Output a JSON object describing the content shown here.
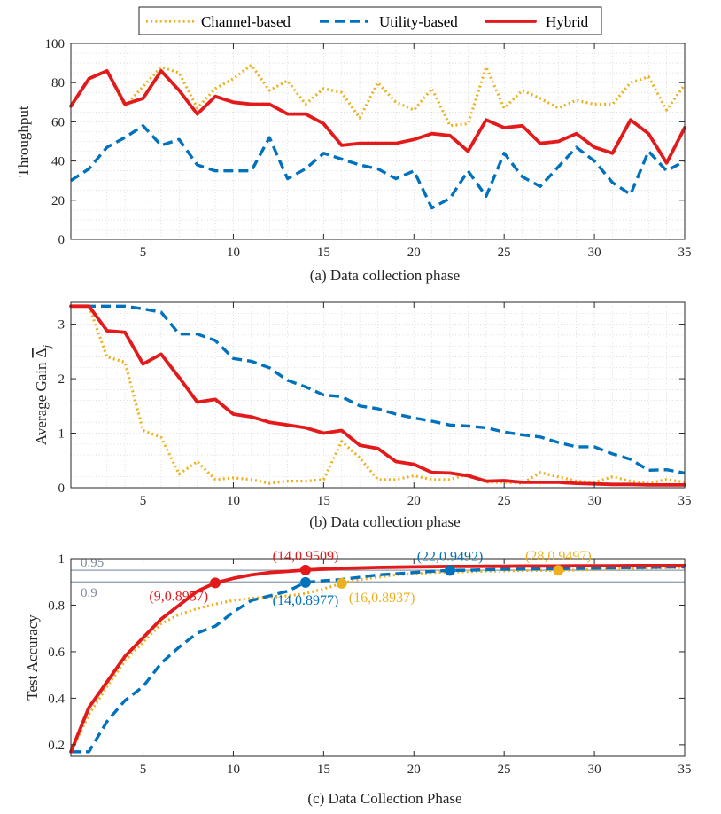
{
  "legend": {
    "entries": [
      {
        "name": "Channel-based",
        "color": "#EDB120",
        "style": "dotted"
      },
      {
        "name": "Utility-based",
        "color": "#0072BD",
        "style": "dashed"
      },
      {
        "name": "Hybrid",
        "color": "#E31A1C",
        "style": "solid"
      }
    ]
  },
  "chart_data": [
    {
      "type": "line",
      "caption": "(a) Data collection phase",
      "ylabel": "Throughput",
      "xlim": [
        1,
        35
      ],
      "ylim": [
        0,
        100
      ],
      "xticks": [
        5,
        10,
        15,
        20,
        25,
        30,
        35
      ],
      "yticks": [
        0,
        20,
        40,
        60,
        80,
        100
      ],
      "grid": true,
      "x": [
        1,
        2,
        3,
        4,
        5,
        6,
        7,
        8,
        9,
        10,
        11,
        12,
        13,
        14,
        15,
        16,
        17,
        18,
        19,
        20,
        21,
        22,
        23,
        24,
        25,
        26,
        27,
        28,
        29,
        30,
        31,
        32,
        33,
        34,
        35
      ],
      "series": [
        {
          "name": "Channel-based",
          "values": [
            68,
            82,
            86,
            68,
            78,
            88,
            85,
            67,
            77,
            82,
            89,
            76,
            81,
            69,
            77,
            75,
            62,
            80,
            70,
            66,
            77,
            58,
            59,
            88,
            67,
            76,
            72,
            67,
            71,
            69,
            69,
            80,
            83,
            66,
            79
          ]
        },
        {
          "name": "Utility-based",
          "values": [
            30,
            36,
            47,
            52,
            58,
            48,
            51,
            38,
            35,
            35,
            35,
            52,
            31,
            36,
            44,
            41,
            38,
            36,
            31,
            35,
            16,
            21,
            35,
            22,
            44,
            32,
            27,
            37,
            47,
            40,
            29,
            23,
            45,
            35,
            40
          ]
        },
        {
          "name": "Hybrid",
          "values": [
            68,
            82,
            86,
            69,
            72,
            86,
            76,
            64,
            73,
            70,
            69,
            69,
            64,
            64,
            59,
            48,
            49,
            49,
            49,
            51,
            54,
            53,
            45,
            61,
            57,
            58,
            49,
            50,
            54,
            47,
            44,
            61,
            54,
            39,
            57
          ]
        }
      ]
    },
    {
      "type": "line",
      "caption": "(b) Data collection phase",
      "ylabel": "Average Gain",
      "ylabel_symbol": "Δ",
      "ylabel_subscript": "j",
      "xlim": [
        1,
        35
      ],
      "ylim": [
        0,
        3.4
      ],
      "xticks": [
        5,
        10,
        15,
        20,
        25,
        30,
        35
      ],
      "yticks": [
        0,
        1,
        2,
        3
      ],
      "grid": true,
      "x": [
        1,
        2,
        3,
        4,
        5,
        6,
        7,
        8,
        9,
        10,
        11,
        12,
        13,
        14,
        15,
        16,
        17,
        18,
        19,
        20,
        21,
        22,
        23,
        24,
        25,
        26,
        27,
        28,
        29,
        30,
        31,
        32,
        33,
        34,
        35
      ],
      "series": [
        {
          "name": "Channel-based",
          "values": [
            3.33,
            3.33,
            2.4,
            2.3,
            1.05,
            0.92,
            0.25,
            0.48,
            0.15,
            0.18,
            0.15,
            0.08,
            0.12,
            0.12,
            0.15,
            0.85,
            0.55,
            0.15,
            0.15,
            0.22,
            0.15,
            0.15,
            0.25,
            0.1,
            0.1,
            0.08,
            0.28,
            0.2,
            0.12,
            0.1,
            0.2,
            0.12,
            0.08,
            0.15,
            0.1
          ]
        },
        {
          "name": "Utility-based",
          "values": [
            3.33,
            3.33,
            3.33,
            3.33,
            3.28,
            3.22,
            2.82,
            2.82,
            2.7,
            2.37,
            2.32,
            2.2,
            1.97,
            1.85,
            1.7,
            1.67,
            1.5,
            1.45,
            1.35,
            1.28,
            1.22,
            1.15,
            1.13,
            1.1,
            1.02,
            0.97,
            0.93,
            0.83,
            0.75,
            0.75,
            0.62,
            0.52,
            0.32,
            0.33,
            0.27
          ]
        },
        {
          "name": "Hybrid",
          "values": [
            3.33,
            3.33,
            2.88,
            2.85,
            2.27,
            2.45,
            2.02,
            1.57,
            1.62,
            1.35,
            1.3,
            1.2,
            1.15,
            1.1,
            1.0,
            1.05,
            0.78,
            0.72,
            0.48,
            0.43,
            0.28,
            0.27,
            0.22,
            0.12,
            0.13,
            0.1,
            0.1,
            0.1,
            0.08,
            0.07,
            0.06,
            0.06,
            0.05,
            0.05,
            0.05
          ]
        }
      ]
    },
    {
      "type": "line",
      "caption": "(c) Data Collection Phase",
      "ylabel": "Test Accuracy",
      "xlim": [
        1,
        35
      ],
      "ylim": [
        0.15,
        1.0
      ],
      "xticks": [
        5,
        10,
        15,
        20,
        25,
        30,
        35
      ],
      "yticks": [
        0.2,
        0.4,
        0.6,
        0.8,
        1
      ],
      "grid": false,
      "x": [
        1,
        2,
        3,
        4,
        5,
        6,
        7,
        8,
        9,
        10,
        11,
        12,
        13,
        14,
        15,
        16,
        17,
        18,
        19,
        20,
        21,
        22,
        23,
        24,
        25,
        26,
        27,
        28,
        29,
        30,
        31,
        32,
        33,
        34,
        35
      ],
      "series": [
        {
          "name": "Channel-based",
          "values": [
            0.17,
            0.33,
            0.45,
            0.56,
            0.64,
            0.72,
            0.76,
            0.785,
            0.805,
            0.82,
            0.83,
            0.835,
            0.84,
            0.85,
            0.87,
            0.8937,
            0.91,
            0.92,
            0.93,
            0.935,
            0.94,
            0.942,
            0.944,
            0.946,
            0.947,
            0.948,
            0.949,
            0.9497,
            0.951,
            0.953,
            0.955,
            0.957,
            0.959,
            0.961,
            0.962
          ]
        },
        {
          "name": "Utility-based",
          "values": [
            0.17,
            0.17,
            0.3,
            0.39,
            0.45,
            0.55,
            0.62,
            0.68,
            0.71,
            0.77,
            0.82,
            0.84,
            0.86,
            0.8977,
            0.905,
            0.91,
            0.92,
            0.93,
            0.935,
            0.94,
            0.945,
            0.9492,
            0.95,
            0.952,
            0.954,
            0.955,
            0.956,
            0.957,
            0.958,
            0.959,
            0.96,
            0.961,
            0.962,
            0.963,
            0.964
          ]
        },
        {
          "name": "Hybrid",
          "values": [
            0.17,
            0.36,
            0.47,
            0.58,
            0.66,
            0.74,
            0.8,
            0.86,
            0.8957,
            0.915,
            0.93,
            0.94,
            0.945,
            0.9509,
            0.955,
            0.958,
            0.96,
            0.962,
            0.963,
            0.964,
            0.965,
            0.966,
            0.966,
            0.967,
            0.967,
            0.968,
            0.968,
            0.968,
            0.969,
            0.969,
            0.969,
            0.97,
            0.97,
            0.97,
            0.97
          ]
        }
      ],
      "hlines": [
        {
          "y": 0.95,
          "label": "0.95"
        },
        {
          "y": 0.9,
          "label": "0.9"
        }
      ],
      "markers": [
        {
          "series": "Hybrid",
          "x": 9,
          "y": 0.8957,
          "label": "(9,0.8957)"
        },
        {
          "series": "Hybrid",
          "x": 14,
          "y": 0.9509,
          "label": "(14,0.9509)"
        },
        {
          "series": "Utility-based",
          "x": 14,
          "y": 0.8977,
          "label": "(14,0.8977)"
        },
        {
          "series": "Utility-based",
          "x": 22,
          "y": 0.9492,
          "label": "(22,0.9492)"
        },
        {
          "series": "Channel-based",
          "x": 16,
          "y": 0.8937,
          "label": "(16,0.8937)"
        },
        {
          "series": "Channel-based",
          "x": 28,
          "y": 0.9497,
          "label": "(28,0.9497)"
        }
      ]
    }
  ]
}
